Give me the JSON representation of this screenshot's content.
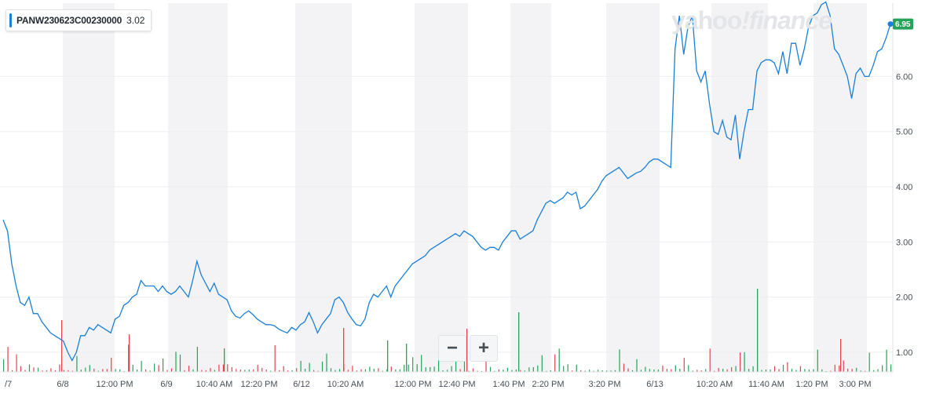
{
  "legend": {
    "symbol": "PANW230623C00230000",
    "value": "3.02"
  },
  "watermark": {
    "part1": "yahoo",
    "part2": "!finance"
  },
  "zoom": {
    "minus": "−",
    "plus": "+"
  },
  "current_price_label": "6.95",
  "colors": {
    "line": "#1a7fd8",
    "up": "#25a35a",
    "down": "#e0464f",
    "badge": "#25a35a",
    "band": "#f3f3f5"
  },
  "chart_data": {
    "type": "line",
    "title": "",
    "xlabel": "",
    "ylabel": "",
    "ylim": [
      0.7,
      7.3
    ],
    "yticks": [
      "1.00",
      "2.00",
      "3.00",
      "4.00",
      "5.00",
      "6.00"
    ],
    "xticks": [
      "/7",
      "6/8",
      "12:00 PM",
      "6/9",
      "10:40 AM",
      "12:20 PM",
      "6/12",
      "10:20 AM",
      "12:00 PM",
      "12:40 PM",
      "1:40 PM",
      "2:20 PM",
      "3:20 PM",
      "6/13",
      "10:20 AM",
      "11:40 AM",
      "1:20 PM",
      "3:00 PM"
    ],
    "grid": true,
    "series": [
      {
        "values": [
          3.4,
          3.2,
          2.6,
          2.2,
          1.9,
          1.85,
          2.0,
          1.7,
          1.7,
          1.55,
          1.45,
          1.35,
          1.3,
          1.25,
          1.2,
          1.0,
          0.85,
          1.0,
          1.3,
          1.3,
          1.45,
          1.4,
          1.5,
          1.45,
          1.4,
          1.35,
          1.6,
          1.65,
          1.85,
          1.9,
          2.0,
          2.05,
          2.3,
          2.2,
          2.2,
          2.2,
          2.1,
          2.2,
          2.1,
          2.05,
          2.1,
          2.2,
          2.1,
          2.0,
          2.3,
          2.65,
          2.4,
          2.25,
          2.1,
          2.25,
          2.05,
          2.0,
          1.95,
          1.75,
          1.65,
          1.62,
          1.7,
          1.75,
          1.68,
          1.6,
          1.55,
          1.5,
          1.5,
          1.48,
          1.42,
          1.38,
          1.35,
          1.45,
          1.4,
          1.5,
          1.55,
          1.72,
          1.55,
          1.35,
          1.5,
          1.6,
          1.7,
          1.95,
          2.0,
          1.9,
          1.72,
          1.6,
          1.5,
          1.48,
          1.6,
          1.9,
          2.05,
          2.0,
          2.1,
          2.2,
          2.0,
          2.2,
          2.3,
          2.4,
          2.5,
          2.6,
          2.65,
          2.7,
          2.75,
          2.85,
          2.9,
          2.95,
          3.0,
          3.05,
          3.1,
          3.15,
          3.1,
          3.2,
          3.15,
          3.1,
          3.0,
          2.9,
          2.85,
          2.9,
          2.9,
          2.85,
          3.0,
          3.1,
          3.2,
          3.2,
          3.05,
          3.1,
          3.15,
          3.2,
          3.4,
          3.55,
          3.7,
          3.75,
          3.7,
          3.75,
          3.8,
          3.9,
          3.85,
          3.9,
          3.6,
          3.65,
          3.75,
          3.85,
          3.95,
          4.1,
          4.2,
          4.25,
          4.3,
          4.35,
          4.25,
          4.15,
          4.2,
          4.25,
          4.28,
          4.35,
          4.45,
          4.5,
          4.5,
          4.45,
          4.4,
          4.35,
          6.5,
          7.1,
          6.4,
          6.9,
          7.1,
          6.1,
          5.9,
          6.1,
          5.5,
          5.0,
          4.95,
          5.2,
          4.9,
          4.85,
          5.3,
          4.5,
          5.0,
          5.4,
          5.4,
          6.1,
          6.25,
          6.3,
          6.3,
          6.25,
          6.05,
          6.45,
          6.05,
          6.6,
          6.6,
          6.2,
          6.5,
          6.9,
          7.1,
          7.15,
          7.3,
          7.35,
          7.1,
          6.5,
          6.4,
          6.2,
          6.0,
          5.6,
          6.05,
          6.15,
          6.0,
          6.0,
          6.2,
          6.45,
          6.5,
          6.7,
          6.95
        ]
      }
    ]
  }
}
